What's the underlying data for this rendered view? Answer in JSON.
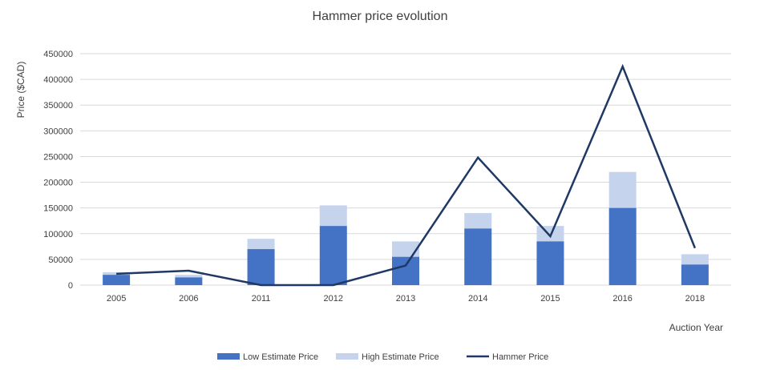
{
  "chart_data": {
    "type": "bar",
    "stacked": true,
    "title": "Hammer price evolution",
    "xlabel": "Auction Year",
    "ylabel": "Price ($CAD)",
    "ylim": [
      0,
      450000
    ],
    "yticks": [
      "0",
      "50000",
      "100000",
      "150000",
      "200000",
      "250000",
      "300000",
      "350000",
      "400000",
      "450000"
    ],
    "categories": [
      "2005",
      "2006",
      "2011",
      "2012",
      "2013",
      "2014",
      "2015",
      "2016",
      "2018"
    ],
    "grid": true,
    "legend_position": "bottom",
    "series": [
      {
        "name": "Low Estimate Price",
        "type": "bar",
        "color": "#4472c4",
        "values": [
          20000,
          15000,
          70000,
          115000,
          55000,
          110000,
          85000,
          150000,
          40000
        ]
      },
      {
        "name": "High Estimate Price",
        "type": "bar",
        "color": "#c5d4ec",
        "values": [
          25000,
          20000,
          90000,
          155000,
          85000,
          140000,
          115000,
          220000,
          60000
        ]
      },
      {
        "name": "Hammer Price",
        "type": "line",
        "color": "#1f3864",
        "values": [
          22000,
          28000,
          0,
          0,
          38000,
          248000,
          95000,
          425000,
          72000
        ]
      }
    ]
  }
}
